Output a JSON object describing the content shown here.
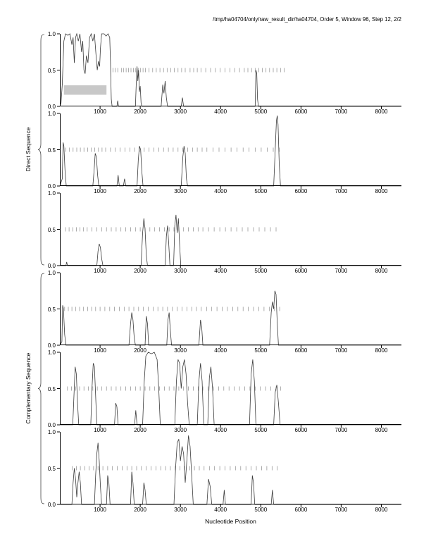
{
  "title": "/tmp/ha04704/only/raw_result_dir/ha04704, Order 5, Window 96, Step 12, 2/2",
  "axis": {
    "x_label": "Nucleotide Position",
    "x_ticks": [
      1000,
      2000,
      3000,
      4000,
      5000,
      6000,
      7000,
      8000
    ],
    "x_max": 8500,
    "y_ticks": [
      "0.0",
      "0.5",
      "1.0"
    ],
    "y_range": [
      0,
      1
    ]
  },
  "groups": [
    {
      "label": "Direct Sequence"
    },
    {
      "label": "Complementary Sequence"
    }
  ],
  "style": {
    "trace_color": "#3a3a3a",
    "half_tick_color": "#8a8a8a",
    "axis_color": "#000000",
    "highlight_color": "#c8c8c8",
    "background": "#ffffff"
  },
  "chart_data": [
    {
      "type": "line",
      "group": "Direct Sequence",
      "y_range": [
        0,
        1
      ],
      "highlight_box": {
        "x1": 100,
        "x2": 1160,
        "y1": 0.16,
        "y2": 0.29
      },
      "line": [
        [
          0,
          0
        ],
        [
          30,
          0.05
        ],
        [
          60,
          0.3
        ],
        [
          100,
          0.9
        ],
        [
          140,
          1.0
        ],
        [
          200,
          0.98
        ],
        [
          250,
          1.0
        ],
        [
          300,
          0.85
        ],
        [
          330,
          0.95
        ],
        [
          360,
          0.6
        ],
        [
          390,
          0.95
        ],
        [
          420,
          1.0
        ],
        [
          460,
          0.9
        ],
        [
          500,
          1.0
        ],
        [
          540,
          0.75
        ],
        [
          570,
          0.9
        ],
        [
          600,
          0.5
        ],
        [
          630,
          0.45
        ],
        [
          660,
          0.7
        ],
        [
          700,
          0.6
        ],
        [
          740,
          0.95
        ],
        [
          780,
          1.0
        ],
        [
          820,
          0.9
        ],
        [
          860,
          1.0
        ],
        [
          900,
          0.7
        ],
        [
          930,
          0.5
        ],
        [
          960,
          0.62
        ],
        [
          990,
          0.55
        ],
        [
          1010,
          0.8
        ],
        [
          1040,
          1.0
        ],
        [
          1100,
          1.0
        ],
        [
          1150,
          0.97
        ],
        [
          1200,
          1.0
        ],
        [
          1240,
          0.95
        ],
        [
          1260,
          0.6
        ],
        [
          1280,
          0.1
        ],
        [
          1300,
          0
        ],
        [
          1420,
          0
        ],
        [
          1440,
          0.08
        ],
        [
          1460,
          0
        ],
        [
          1880,
          0
        ],
        [
          1900,
          0.3
        ],
        [
          1920,
          0.55
        ],
        [
          1940,
          0.35
        ],
        [
          1960,
          0.5
        ],
        [
          1980,
          0.2
        ],
        [
          2000,
          0.28
        ],
        [
          2020,
          0.05
        ],
        [
          2040,
          0
        ],
        [
          2520,
          0
        ],
        [
          2560,
          0.3
        ],
        [
          2590,
          0.18
        ],
        [
          2620,
          0.35
        ],
        [
          2650,
          0.12
        ],
        [
          2680,
          0
        ],
        [
          3020,
          0
        ],
        [
          3050,
          0.12
        ],
        [
          3080,
          0
        ],
        [
          4860,
          0
        ],
        [
          4880,
          0.5
        ],
        [
          4900,
          0.45
        ],
        [
          4920,
          0.1
        ],
        [
          4940,
          0
        ],
        [
          8500,
          0
        ]
      ],
      "half_ticks": [
        1320,
        1380,
        1440,
        1530,
        1590,
        1650,
        1710,
        1770,
        1830,
        1890,
        1950,
        2010,
        2070,
        2130,
        2220,
        2310,
        2400,
        2490,
        2580,
        2670,
        2760,
        2850,
        2940,
        3030,
        3120,
        3240,
        3330,
        3420,
        3510,
        3630,
        3750,
        3870,
        3990,
        4110,
        4230,
        4350,
        4470,
        4590,
        4680,
        4770,
        4860,
        4950,
        5040,
        5130,
        5220,
        5310,
        5400,
        5490,
        5580
      ]
    },
    {
      "type": "line",
      "group": "Direct Sequence",
      "y_range": [
        0,
        1
      ],
      "line": [
        [
          0,
          0
        ],
        [
          60,
          0.1
        ],
        [
          80,
          0.6
        ],
        [
          100,
          0.55
        ],
        [
          130,
          0.2
        ],
        [
          160,
          0
        ],
        [
          820,
          0
        ],
        [
          850,
          0.2
        ],
        [
          880,
          0.45
        ],
        [
          910,
          0.4
        ],
        [
          940,
          0.15
        ],
        [
          970,
          0
        ],
        [
          1420,
          0
        ],
        [
          1450,
          0.15
        ],
        [
          1480,
          0
        ],
        [
          1580,
          0
        ],
        [
          1610,
          0.1
        ],
        [
          1640,
          0
        ],
        [
          1920,
          0
        ],
        [
          1950,
          0.35
        ],
        [
          1980,
          0.55
        ],
        [
          2010,
          0.5
        ],
        [
          2040,
          0.2
        ],
        [
          2070,
          0
        ],
        [
          3020,
          0
        ],
        [
          3060,
          0.4
        ],
        [
          3090,
          0.55
        ],
        [
          3120,
          0.45
        ],
        [
          3150,
          0.1
        ],
        [
          3180,
          0
        ],
        [
          5320,
          0
        ],
        [
          5360,
          0.5
        ],
        [
          5390,
          0.9
        ],
        [
          5410,
          0.97
        ],
        [
          5430,
          0.85
        ],
        [
          5460,
          0.3
        ],
        [
          5490,
          0
        ],
        [
          8500,
          0
        ]
      ],
      "half_ticks": [
        150,
        240,
        330,
        420,
        510,
        600,
        690,
        780,
        870,
        960,
        1050,
        1140,
        1260,
        1380,
        1500,
        1620,
        1740,
        1860,
        1980,
        2100,
        2220,
        2340,
        2460,
        2580,
        2700,
        2820,
        2940,
        3060,
        3180,
        3300,
        3420,
        3540,
        3660,
        3810,
        3960,
        4110,
        4260,
        4410,
        4560,
        4710,
        4860,
        5010,
        5160,
        5310,
        5460
      ]
    },
    {
      "type": "line",
      "group": "Direct Sequence",
      "y_range": [
        0,
        1
      ],
      "line": [
        [
          0,
          0
        ],
        [
          150,
          0
        ],
        [
          170,
          0.05
        ],
        [
          190,
          0
        ],
        [
          920,
          0
        ],
        [
          950,
          0.2
        ],
        [
          980,
          0.3
        ],
        [
          1010,
          0.25
        ],
        [
          1040,
          0.1
        ],
        [
          1070,
          0
        ],
        [
          2020,
          0
        ],
        [
          2060,
          0.45
        ],
        [
          2090,
          0.65
        ],
        [
          2120,
          0.5
        ],
        [
          2150,
          0.15
        ],
        [
          2180,
          0
        ],
        [
          2620,
          0
        ],
        [
          2650,
          0.4
        ],
        [
          2680,
          0.55
        ],
        [
          2710,
          0.3
        ],
        [
          2740,
          0
        ],
        [
          2830,
          0
        ],
        [
          2860,
          0.55
        ],
        [
          2890,
          0.7
        ],
        [
          2920,
          0.45
        ],
        [
          2950,
          0.65
        ],
        [
          2980,
          0.3
        ],
        [
          3010,
          0
        ],
        [
          8500,
          0
        ]
      ],
      "half_ticks": [
        140,
        230,
        320,
        410,
        500,
        590,
        680,
        800,
        920,
        1040,
        1160,
        1280,
        1400,
        1520,
        1640,
        1760,
        1880,
        2000,
        2120,
        2240,
        2360,
        2480,
        2600,
        2720,
        2840,
        2960,
        3080,
        3200,
        3320,
        3440,
        3560,
        3700,
        3840,
        3980,
        4120,
        4260,
        4400,
        4540,
        4680,
        4820,
        4960,
        5100,
        5240,
        5380
      ]
    },
    {
      "type": "line",
      "group": "Complementary Sequence",
      "y_range": [
        0,
        1
      ],
      "line": [
        [
          0,
          0
        ],
        [
          50,
          0.05
        ],
        [
          70,
          0.55
        ],
        [
          90,
          0.5
        ],
        [
          120,
          0.15
        ],
        [
          150,
          0
        ],
        [
          1720,
          0
        ],
        [
          1760,
          0.3
        ],
        [
          1790,
          0.45
        ],
        [
          1820,
          0.35
        ],
        [
          1850,
          0.1
        ],
        [
          1880,
          0
        ],
        [
          2120,
          0
        ],
        [
          2150,
          0.4
        ],
        [
          2180,
          0.3
        ],
        [
          2210,
          0
        ],
        [
          2660,
          0
        ],
        [
          2690,
          0.35
        ],
        [
          2720,
          0.45
        ],
        [
          2750,
          0.2
        ],
        [
          2780,
          0
        ],
        [
          3460,
          0
        ],
        [
          3500,
          0.35
        ],
        [
          3530,
          0.25
        ],
        [
          3560,
          0
        ],
        [
          5220,
          0
        ],
        [
          5260,
          0.45
        ],
        [
          5290,
          0.6
        ],
        [
          5320,
          0.5
        ],
        [
          5350,
          0.75
        ],
        [
          5380,
          0.7
        ],
        [
          5410,
          0.3
        ],
        [
          5440,
          0
        ],
        [
          8500,
          0
        ]
      ],
      "half_ticks": [
        120,
        210,
        300,
        390,
        490,
        590,
        690,
        790,
        890,
        1000,
        1120,
        1240,
        1360,
        1480,
        1600,
        1720,
        1840,
        1960,
        2080,
        2200,
        2320,
        2440,
        2560,
        2680,
        2800,
        2920,
        3040,
        3160,
        3280,
        3400,
        3520,
        3650,
        3780,
        3910,
        4040,
        4170,
        4300,
        4430,
        4560,
        4690,
        4820,
        4950,
        5080,
        5210,
        5340,
        5470
      ]
    },
    {
      "type": "line",
      "group": "Complementary Sequence",
      "y_range": [
        0,
        1
      ],
      "line": [
        [
          0,
          0
        ],
        [
          320,
          0
        ],
        [
          350,
          0.4
        ],
        [
          380,
          0.8
        ],
        [
          410,
          0.7
        ],
        [
          440,
          0.3
        ],
        [
          470,
          0
        ],
        [
          770,
          0
        ],
        [
          800,
          0.5
        ],
        [
          830,
          0.85
        ],
        [
          860,
          0.8
        ],
        [
          890,
          0.4
        ],
        [
          920,
          0
        ],
        [
          1360,
          0
        ],
        [
          1390,
          0.3
        ],
        [
          1420,
          0.25
        ],
        [
          1450,
          0
        ],
        [
          1860,
          0
        ],
        [
          1890,
          0.2
        ],
        [
          1920,
          0
        ],
        [
          2060,
          0
        ],
        [
          2100,
          0.6
        ],
        [
          2140,
          0.95
        ],
        [
          2200,
          1.0
        ],
        [
          2280,
          0.98
        ],
        [
          2350,
          1.0
        ],
        [
          2420,
          0.9
        ],
        [
          2460,
          0.5
        ],
        [
          2500,
          0
        ],
        [
          2860,
          0
        ],
        [
          2900,
          0.6
        ],
        [
          2940,
          0.9
        ],
        [
          2980,
          0.85
        ],
        [
          3020,
          0.5
        ],
        [
          3060,
          0.8
        ],
        [
          3100,
          0.9
        ],
        [
          3140,
          0.7
        ],
        [
          3180,
          0.3
        ],
        [
          3220,
          0
        ],
        [
          3420,
          0
        ],
        [
          3460,
          0.6
        ],
        [
          3500,
          0.85
        ],
        [
          3540,
          0.6
        ],
        [
          3580,
          0
        ],
        [
          3680,
          0
        ],
        [
          3720,
          0.65
        ],
        [
          3760,
          0.8
        ],
        [
          3800,
          0.5
        ],
        [
          3840,
          0
        ],
        [
          4720,
          0
        ],
        [
          4760,
          0.7
        ],
        [
          4800,
          0.9
        ],
        [
          4840,
          0.6
        ],
        [
          4880,
          0
        ],
        [
          5320,
          0
        ],
        [
          5360,
          0.45
        ],
        [
          5400,
          0.55
        ],
        [
          5440,
          0.3
        ],
        [
          5480,
          0
        ],
        [
          8500,
          0
        ]
      ],
      "half_ticks": [
        190,
        290,
        390,
        490,
        600,
        710,
        820,
        930,
        1040,
        1160,
        1280,
        1400,
        1520,
        1640,
        1760,
        1880,
        2000,
        2120,
        2240,
        2360,
        2480,
        2600,
        2720,
        2840,
        2960,
        3080,
        3200,
        3320,
        3440,
        3560,
        3690,
        3820,
        3950,
        4080,
        4210,
        4340,
        4470,
        4600,
        4730,
        4860,
        4990,
        5120,
        5250,
        5380,
        5490
      ]
    },
    {
      "type": "line",
      "group": "Complementary Sequence",
      "y_range": [
        0,
        1
      ],
      "line": [
        [
          0,
          0
        ],
        [
          300,
          0
        ],
        [
          330,
          0.3
        ],
        [
          360,
          0.5
        ],
        [
          390,
          0.35
        ],
        [
          420,
          0.1
        ],
        [
          450,
          0.3
        ],
        [
          480,
          0.45
        ],
        [
          510,
          0.3
        ],
        [
          540,
          0
        ],
        [
          860,
          0
        ],
        [
          890,
          0.4
        ],
        [
          920,
          0.7
        ],
        [
          950,
          0.85
        ],
        [
          980,
          0.6
        ],
        [
          1010,
          0.25
        ],
        [
          1040,
          0
        ],
        [
          1160,
          0
        ],
        [
          1190,
          0.4
        ],
        [
          1220,
          0.3
        ],
        [
          1250,
          0
        ],
        [
          1760,
          0
        ],
        [
          1790,
          0.45
        ],
        [
          1820,
          0.3
        ],
        [
          1850,
          0
        ],
        [
          2060,
          0
        ],
        [
          2090,
          0.3
        ],
        [
          2120,
          0.2
        ],
        [
          2150,
          0
        ],
        [
          2840,
          0
        ],
        [
          2880,
          0.5
        ],
        [
          2920,
          0.85
        ],
        [
          2960,
          0.9
        ],
        [
          3000,
          0.6
        ],
        [
          3040,
          0.8
        ],
        [
          3080,
          0.7
        ],
        [
          3120,
          0.3
        ],
        [
          3160,
          0.6
        ],
        [
          3200,
          0.95
        ],
        [
          3240,
          0.8
        ],
        [
          3280,
          0.4
        ],
        [
          3320,
          0
        ],
        [
          3660,
          0
        ],
        [
          3700,
          0.35
        ],
        [
          3740,
          0.25
        ],
        [
          3780,
          0
        ],
        [
          4060,
          0
        ],
        [
          4090,
          0.2
        ],
        [
          4120,
          0
        ],
        [
          4760,
          0
        ],
        [
          4790,
          0.4
        ],
        [
          4820,
          0.3
        ],
        [
          4850,
          0
        ],
        [
          5260,
          0
        ],
        [
          5290,
          0.2
        ],
        [
          5320,
          0
        ],
        [
          8500,
          0
        ]
      ],
      "half_ticks": [
        310,
        410,
        510,
        620,
        730,
        840,
        950,
        1070,
        1190,
        1310,
        1430,
        1550,
        1670,
        1790,
        1910,
        2030,
        2150,
        2270,
        2390,
        2510,
        2630,
        2750,
        2870,
        2990,
        3110,
        3230,
        3350,
        3470,
        3590,
        3720,
        3850,
        3980,
        4110,
        4240,
        4370,
        4500,
        4630,
        4760,
        4890,
        5020,
        5150,
        5280,
        5410
      ]
    }
  ]
}
